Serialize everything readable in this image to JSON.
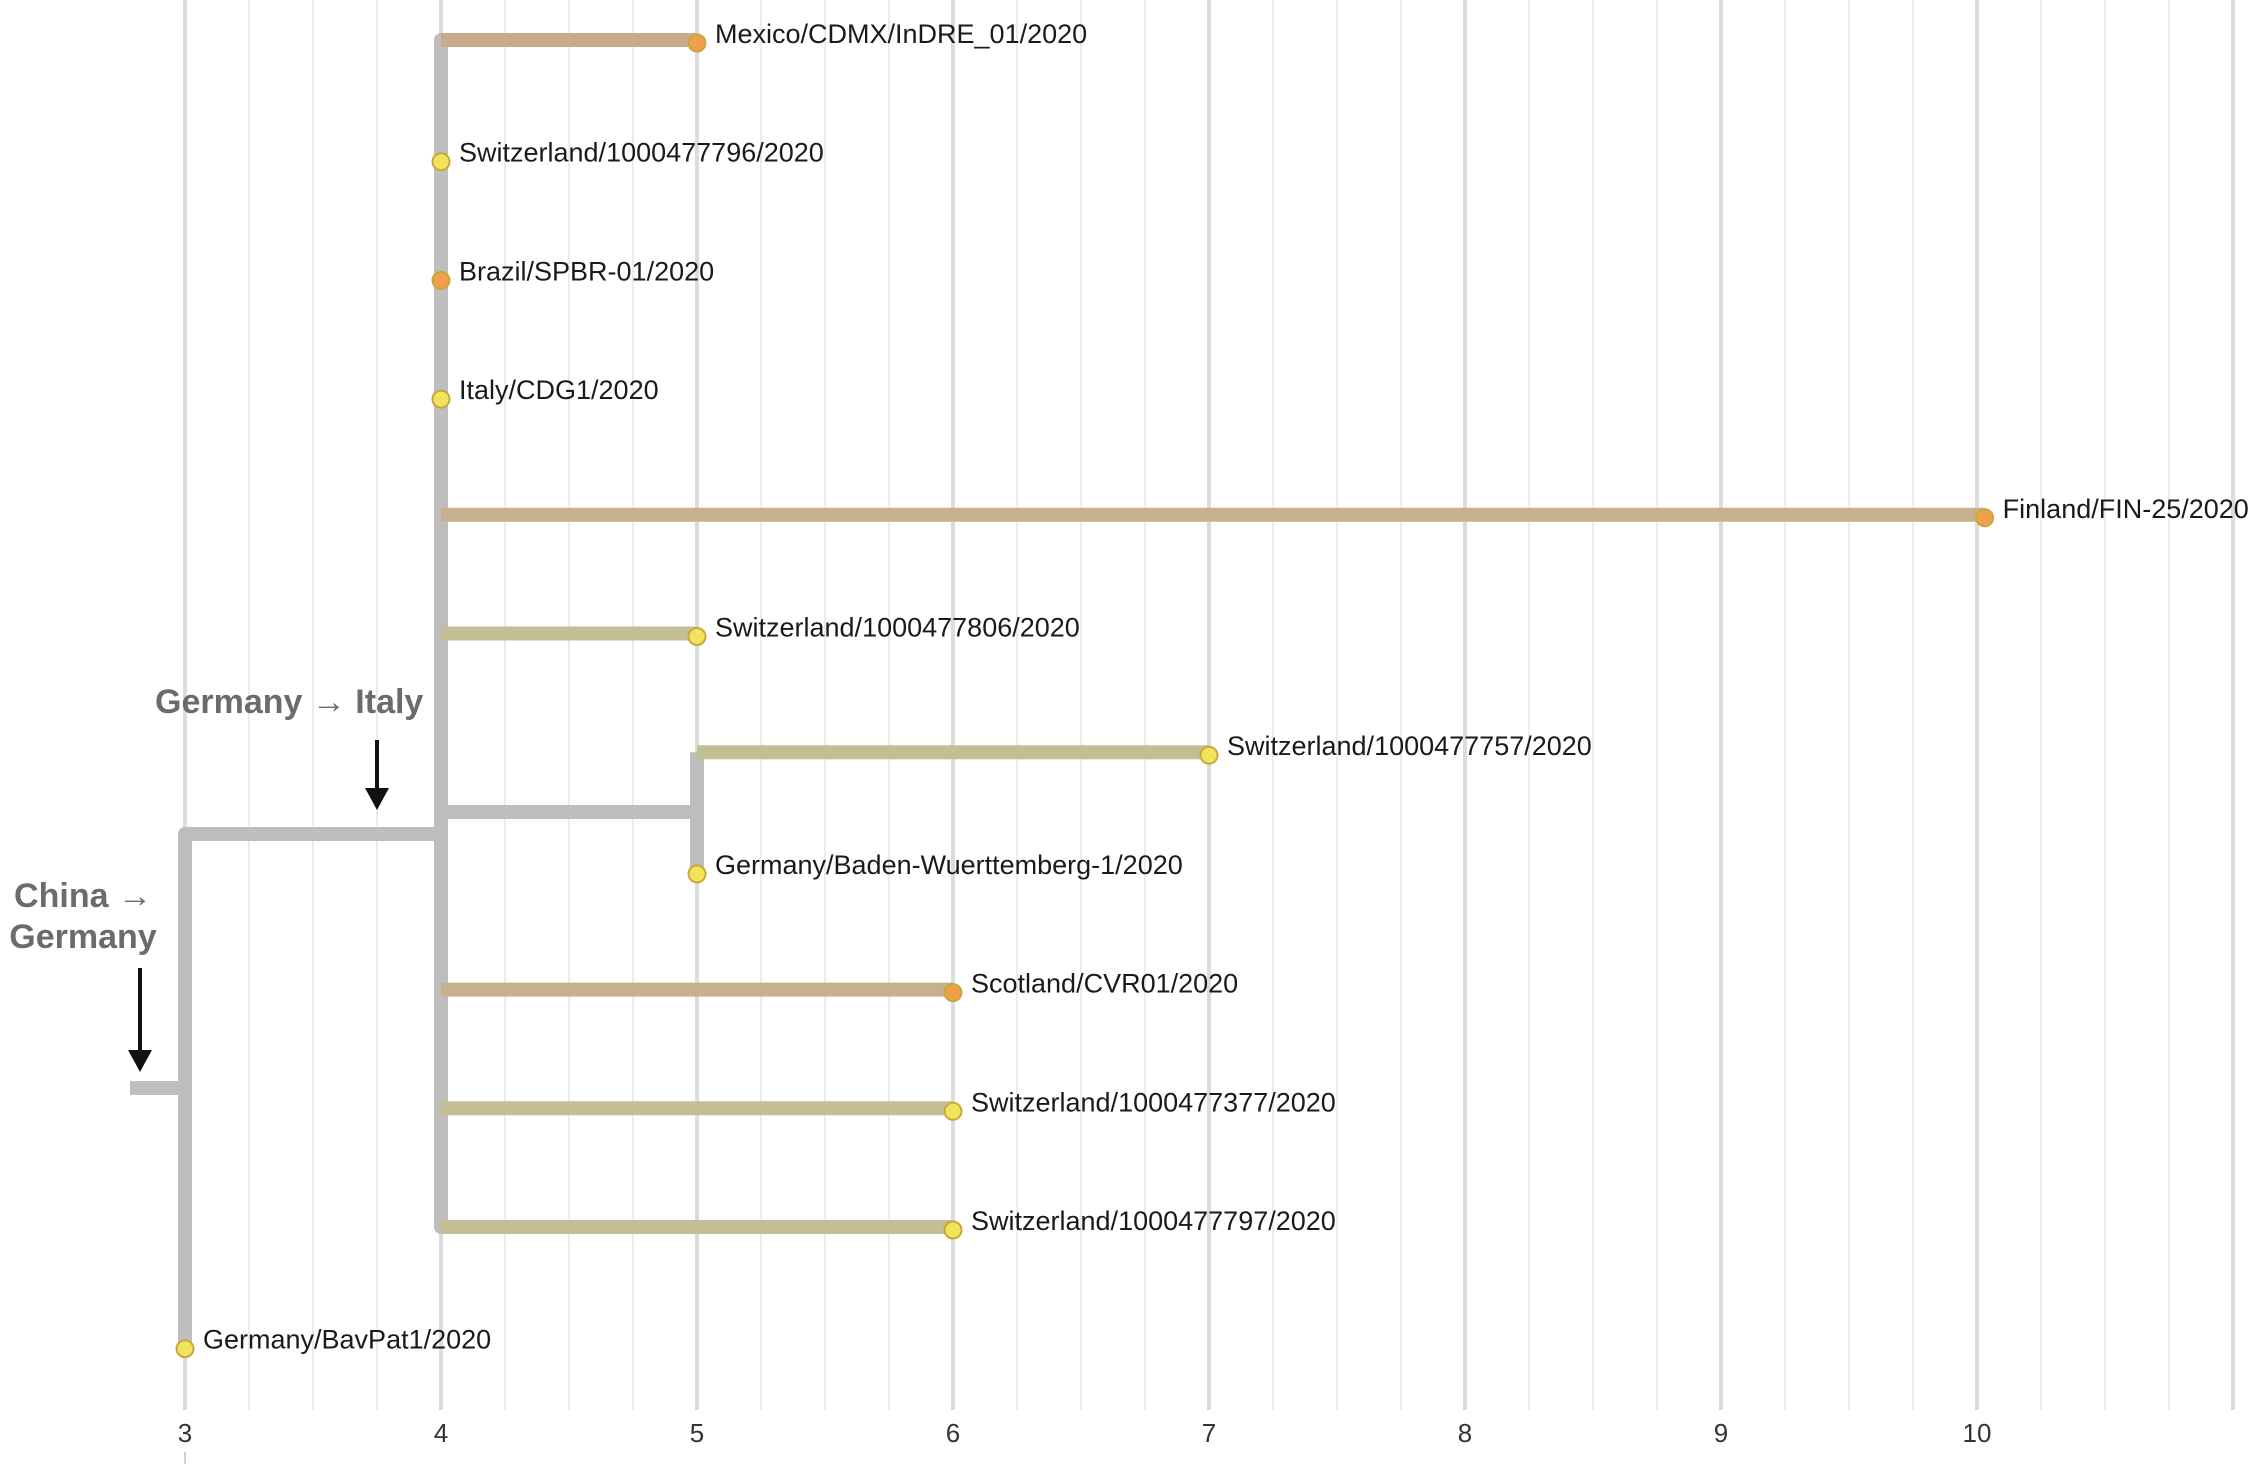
{
  "chart_data": {
    "type": "tree",
    "x_axis": {
      "ticks": [
        "3",
        "4",
        "5",
        "6",
        "7",
        "8",
        "9",
        "10"
      ],
      "range": [
        2.8,
        11.0
      ],
      "minor_grid_step": 0.25
    },
    "tips": [
      {
        "name": "Mexico/CDMX/InDRE_01/2020",
        "x": 5,
        "parent_x": 4,
        "color": "#f0a04a",
        "branch_color": "#c9ab8a"
      },
      {
        "name": "Switzerland/1000477796/2020",
        "x": 4,
        "parent_x": 4,
        "color": "#f2e35d",
        "branch_color": "#bebebe"
      },
      {
        "name": "Brazil/SPBR-01/2020",
        "x": 4,
        "parent_x": 4,
        "color": "#f0a04a",
        "branch_color": "#bebebe"
      },
      {
        "name": "Italy/CDG1/2020",
        "x": 4,
        "parent_x": 4,
        "color": "#f2e35d",
        "branch_color": "#bebebe"
      },
      {
        "name": "Finland/FIN-25/2020",
        "x": 10.03,
        "parent_x": 4,
        "color": "#f0a04a",
        "branch_color": "#c9b08d"
      },
      {
        "name": "Switzerland/1000477806/2020",
        "x": 5,
        "parent_x": 4,
        "color": "#f2e35d",
        "branch_color": "#c3be93"
      },
      {
        "name": "Switzerland/1000477757/2020",
        "x": 7,
        "parent_x": 5,
        "color": "#f2e35d",
        "branch_color": "#c3be93"
      },
      {
        "name": "Germany/Baden-Wuerttemberg-1/2020",
        "x": 5,
        "parent_x": 5,
        "color": "#f2e35d",
        "branch_color": "#bebebe"
      },
      {
        "name": "Scotland/CVR01/2020",
        "x": 6,
        "parent_x": 4,
        "color": "#f0a04a",
        "branch_color": "#c9b08d"
      },
      {
        "name": "Switzerland/1000477377/2020",
        "x": 6,
        "parent_x": 4,
        "color": "#f2e35d",
        "branch_color": "#c3be93"
      },
      {
        "name": "Switzerland/1000477797/2020",
        "x": 6,
        "parent_x": 4,
        "color": "#f2e35d",
        "branch_color": "#c3be93"
      },
      {
        "name": "Germany/BavPat1/2020",
        "x": 3,
        "parent_x": 3,
        "color": "#f2e35d",
        "branch_color": "#bebebe"
      }
    ],
    "annotations": [
      {
        "text": "Germany → Italy",
        "at_x": 3.75
      },
      {
        "text": "China → Germany",
        "at_x": 2.85
      }
    ],
    "colors": {
      "trunk": "#bebebe",
      "grid_major": "#dcdcdc",
      "grid_minor": "#ececec",
      "arrow": "#111111",
      "tip_stroke": "#c8a83a"
    }
  }
}
